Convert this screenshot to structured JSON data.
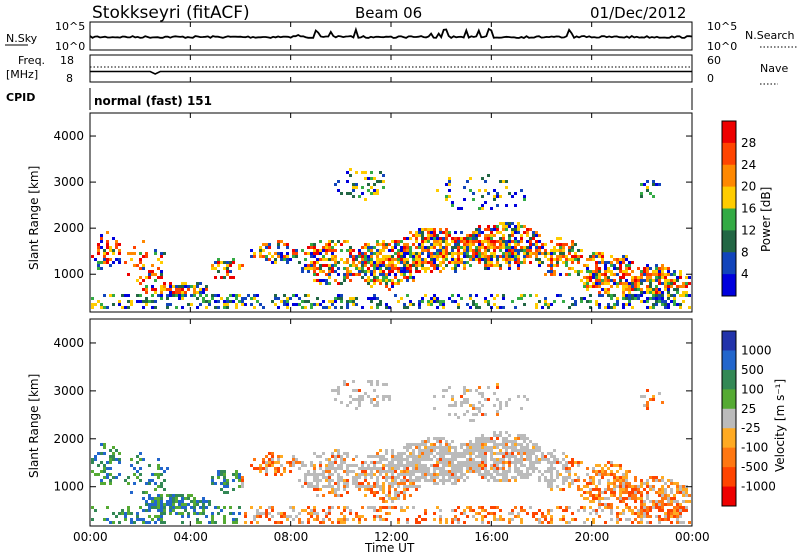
{
  "header": {
    "station": "Stokkseyri (fitACF)",
    "beam": "Beam 06",
    "date": "01/Dec/2012"
  },
  "panels": {
    "nsky": {
      "label": "N.Sky",
      "left_ticks": [
        "10^5",
        "10^0"
      ],
      "right_label": "N.Search",
      "right_ticks": [
        "10^5",
        "10^0"
      ]
    },
    "freq": {
      "label_top": "Freq.",
      "label_unit": "[MHz]",
      "left_ticks": [
        "18",
        "8"
      ],
      "right_label": "Nave",
      "right_ticks": [
        "60",
        "0"
      ]
    },
    "cpid": {
      "label": "CPID",
      "mode_text": "normal (fast) 151"
    }
  },
  "chart_data": [
    {
      "type": "heatmap",
      "name": "power-panel",
      "ylabel": "Slant Range [km]",
      "colorbar_label": "Power [dB]",
      "y_ticks": [
        "4000",
        "3000",
        "2000",
        "1000"
      ],
      "ylim": [
        180,
        4500
      ],
      "colorbar_ticks": [
        "28",
        "24",
        "20",
        "16",
        "12",
        "8",
        "4"
      ],
      "colorbar_colors": [
        "#ee0000",
        "#ff4400",
        "#ff8800",
        "#ffcc00",
        "#33aa44",
        "#226644",
        "#1144bb",
        "#0000dd"
      ]
    },
    {
      "type": "heatmap",
      "name": "velocity-panel",
      "ylabel": "Slant Range [km]",
      "colorbar_label": "Velocity [m s⁻¹]",
      "y_ticks": [
        "4000",
        "3000",
        "2000",
        "1000"
      ],
      "ylim": [
        180,
        4500
      ],
      "colorbar_ticks": [
        "1000",
        "500",
        "100",
        "25",
        "-25",
        "-100",
        "-500",
        "-1000"
      ],
      "colorbar_colors": [
        "#2233aa",
        "#2266cc",
        "#338855",
        "#55aa33",
        "#bbbbbb",
        "#ffaa22",
        "#ff7711",
        "#ff4400",
        "#ee0000"
      ]
    }
  ],
  "xaxis": {
    "label": "Time UT",
    "ticks": [
      "00:00",
      "04:00",
      "08:00",
      "12:00",
      "16:00",
      "20:00",
      "00:00"
    ]
  },
  "colors": {
    "trace": "#000000",
    "frame": "#000000"
  }
}
